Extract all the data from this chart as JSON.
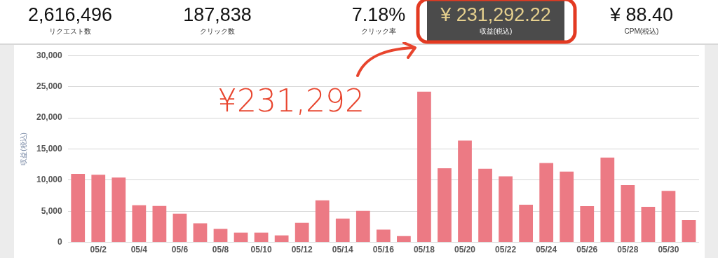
{
  "chart_data": [
    {
      "type": "other",
      "annotations": [
        "2,616,496",
        "リクエスト数",
        "187,838",
        "クリック数",
        "7.18%",
        "クリック率",
        "¥ 231,292.22",
        "収益(税込)",
        "¥ 88.40",
        "CPM(税込)"
      ]
    },
    {
      "type": "bar",
      "ylabel": "収益(税込)",
      "categories": [
        null,
        "05/2",
        null,
        "05/4",
        null,
        "05/6",
        null,
        "05/8",
        null,
        "05/10",
        null,
        "05/12",
        null,
        "05/14",
        null,
        "05/16",
        null,
        "05/18",
        null,
        "05/20",
        null,
        "05/22",
        null,
        "05/24",
        null,
        "05/26",
        null,
        "05/28",
        null,
        "05/30",
        null
      ],
      "values": [
        11000,
        10850,
        10400,
        5950,
        5850,
        4600,
        3050,
        2150,
        1550,
        1550,
        1100,
        3150,
        6750,
        3800,
        5050,
        2050,
        1000,
        24200,
        11900,
        16350,
        11800,
        10600,
        6050,
        12750,
        11350,
        5800,
        13600,
        9200,
        5700,
        8250,
        3550
      ],
      "color": "#ec7a84",
      "ylim": [
        0,
        30000
      ],
      "yticks": [
        {
          "value": 0,
          "label": "0"
        },
        {
          "value": 5000,
          "label": "5,000"
        },
        {
          "value": 10000,
          "label": "10,000"
        },
        {
          "value": 15000,
          "label": "15,000"
        },
        {
          "value": 20000,
          "label": "20,000"
        },
        {
          "value": 25000,
          "label": "25,000"
        },
        {
          "value": 30000,
          "label": "30,000"
        }
      ],
      "grid": "y",
      "annotations": [
        "¥231,292"
      ]
    }
  ]
}
